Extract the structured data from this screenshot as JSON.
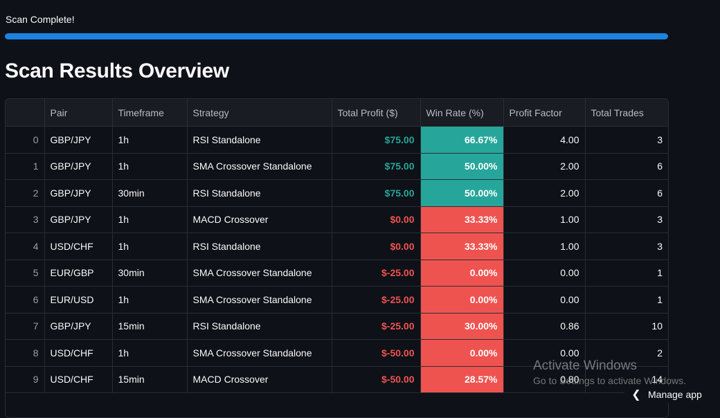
{
  "status": {
    "message": "Scan Complete!",
    "progress": 1.0
  },
  "heading": "Scan Results Overview",
  "table": {
    "columns": [
      "",
      "Pair",
      "Timeframe",
      "Strategy",
      "Total Profit ($)",
      "Win Rate (%)",
      "Profit Factor",
      "Total Trades"
    ],
    "rows": [
      {
        "idx": "0",
        "pair": "GBP/JPY",
        "timeframe": "1h",
        "strategy": "RSI Standalone",
        "profit": "$75.00",
        "win_rate": "66.67%",
        "profit_factor": "4.00",
        "trades": "3"
      },
      {
        "idx": "1",
        "pair": "GBP/JPY",
        "timeframe": "1h",
        "strategy": "SMA Crossover Standalone",
        "profit": "$75.00",
        "win_rate": "50.00%",
        "profit_factor": "2.00",
        "trades": "6"
      },
      {
        "idx": "2",
        "pair": "GBP/JPY",
        "timeframe": "30min",
        "strategy": "RSI Standalone",
        "profit": "$75.00",
        "win_rate": "50.00%",
        "profit_factor": "2.00",
        "trades": "6"
      },
      {
        "idx": "3",
        "pair": "GBP/JPY",
        "timeframe": "1h",
        "strategy": "MACD Crossover",
        "profit": "$0.00",
        "win_rate": "33.33%",
        "profit_factor": "1.00",
        "trades": "3"
      },
      {
        "idx": "4",
        "pair": "USD/CHF",
        "timeframe": "1h",
        "strategy": "RSI Standalone",
        "profit": "$0.00",
        "win_rate": "33.33%",
        "profit_factor": "1.00",
        "trades": "3"
      },
      {
        "idx": "5",
        "pair": "EUR/GBP",
        "timeframe": "30min",
        "strategy": "SMA Crossover Standalone",
        "profit": "$-25.00",
        "win_rate": "0.00%",
        "profit_factor": "0.00",
        "trades": "1"
      },
      {
        "idx": "6",
        "pair": "EUR/USD",
        "timeframe": "1h",
        "strategy": "SMA Crossover Standalone",
        "profit": "$-25.00",
        "win_rate": "0.00%",
        "profit_factor": "0.00",
        "trades": "1"
      },
      {
        "idx": "7",
        "pair": "GBP/JPY",
        "timeframe": "15min",
        "strategy": "RSI Standalone",
        "profit": "$-25.00",
        "win_rate": "30.00%",
        "profit_factor": "0.86",
        "trades": "10"
      },
      {
        "idx": "8",
        "pair": "USD/CHF",
        "timeframe": "1h",
        "strategy": "SMA Crossover Standalone",
        "profit": "$-50.00",
        "win_rate": "0.00%",
        "profit_factor": "0.00",
        "trades": "2"
      },
      {
        "idx": "9",
        "pair": "USD/CHF",
        "timeframe": "15min",
        "strategy": "MACD Crossover",
        "profit": "$-50.00",
        "win_rate": "28.57%",
        "profit_factor": "0.80",
        "trades": "14"
      }
    ]
  },
  "watermark": {
    "title": "Activate Windows",
    "subtitle": "Go to Settings to activate Windows."
  },
  "footer": {
    "manage_label": "Manage app",
    "icon": "chevron-left-icon"
  },
  "colors": {
    "positive": "#26a69a",
    "negative": "#ef5350",
    "progress": "#1c83e1",
    "background": "#0e1117"
  }
}
